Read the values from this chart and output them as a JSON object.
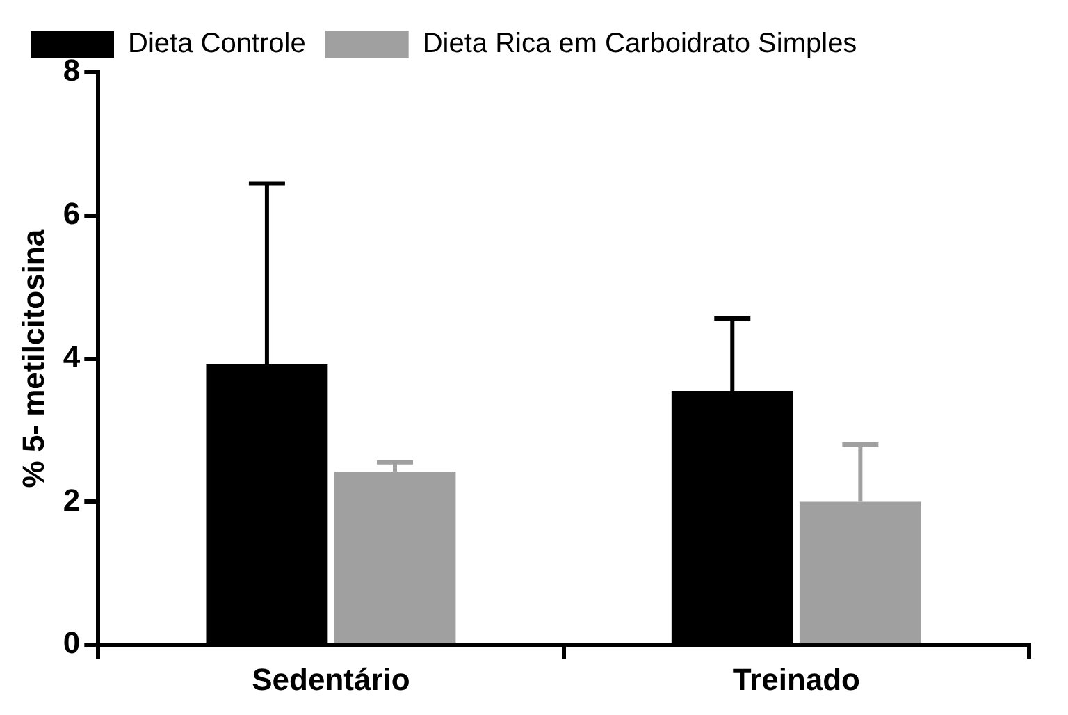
{
  "chart_data": {
    "type": "bar",
    "ylabel": "% 5- metilcitosina",
    "categories": [
      "Sedentário",
      "Treinado"
    ],
    "series": [
      {
        "name": "Dieta Controle",
        "color": "#000000",
        "values": [
          3.92,
          3.55
        ],
        "errors": [
          [
            3.92,
            6.45
          ],
          [
            3.55,
            4.56
          ]
        ]
      },
      {
        "name": "Dieta Rica em Carboidrato Simples",
        "color": "#a0a0a0",
        "values": [
          2.42,
          2.0
        ],
        "errors": [
          [
            2.42,
            2.55
          ],
          [
            2.0,
            2.8
          ]
        ]
      }
    ],
    "ylim": [
      0,
      8
    ],
    "yticks": [
      0,
      2,
      4,
      6,
      8
    ],
    "grid": false,
    "legend": "top left"
  }
}
